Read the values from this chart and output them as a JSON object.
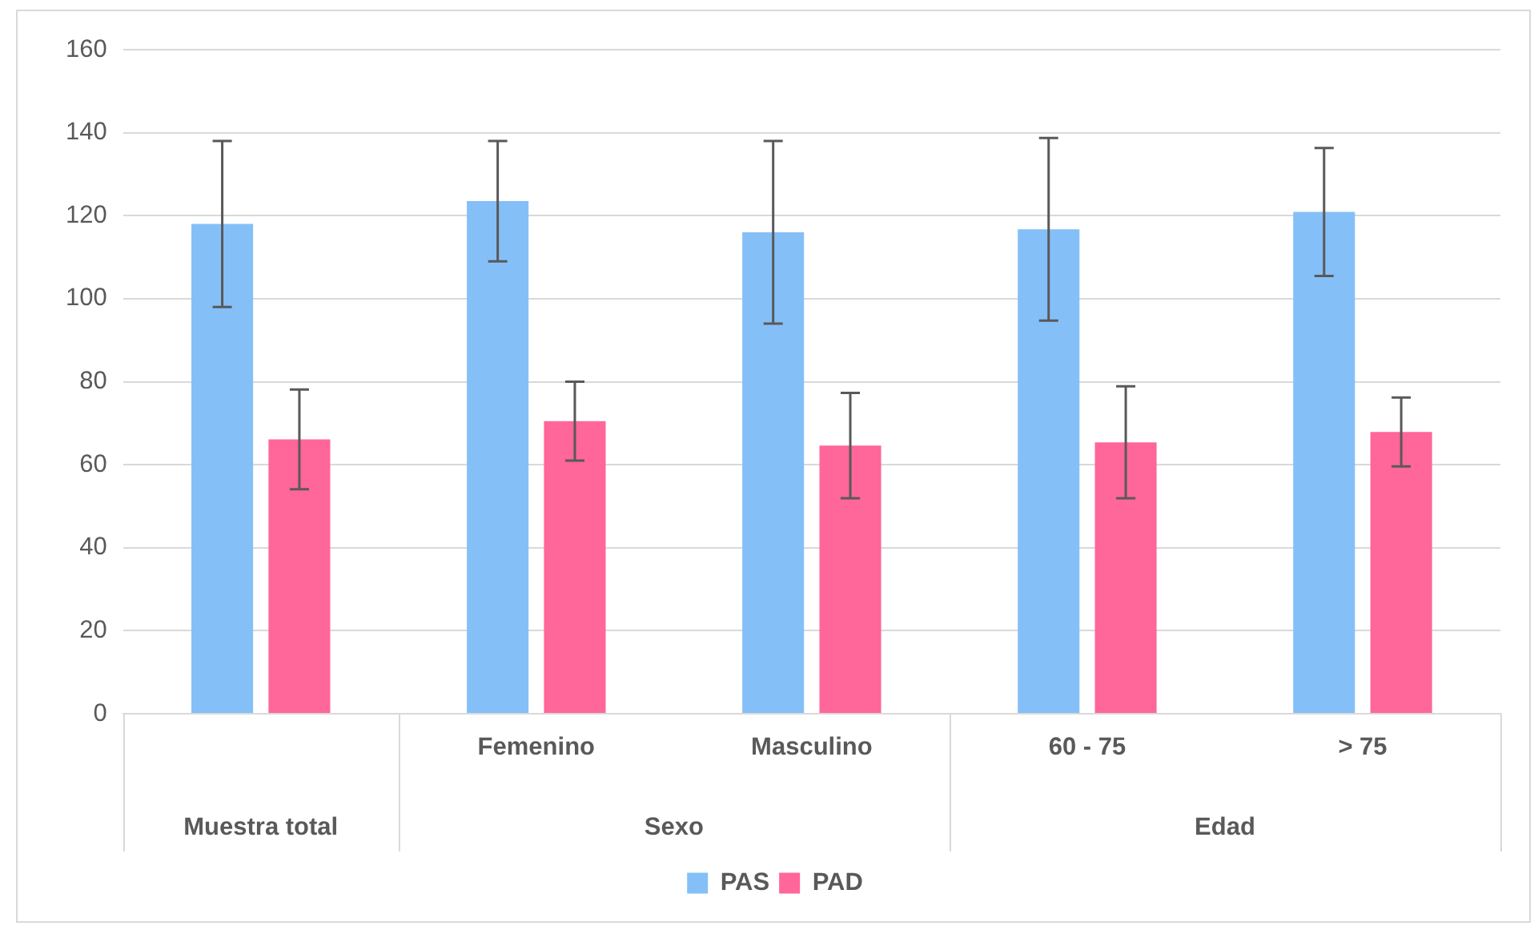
{
  "chart_data": {
    "type": "bar",
    "categories": [
      null,
      "Femenino",
      "Masculino",
      "60 - 75",
      "> 75"
    ],
    "annotations": [
      "Muestra total",
      "Sexo",
      "Edad"
    ],
    "series": [
      {
        "name": "PAS",
        "color": "#85bff8",
        "values": [
          118,
          123.5,
          116,
          116.7,
          120.9
        ],
        "errors": [
          20,
          14.5,
          22,
          22,
          15.4
        ]
      },
      {
        "name": "PAD",
        "color": "#ff6699",
        "values": [
          66.1,
          70.5,
          64.6,
          65.4,
          67.9
        ],
        "errors": [
          12,
          9.5,
          12.7,
          13.5,
          8.3
        ]
      }
    ],
    "ylim": [
      0,
      160
    ],
    "yticks": [
      0,
      20,
      40,
      60,
      80,
      100,
      120,
      140,
      160
    ],
    "grid": "y",
    "legend": "bottom"
  }
}
